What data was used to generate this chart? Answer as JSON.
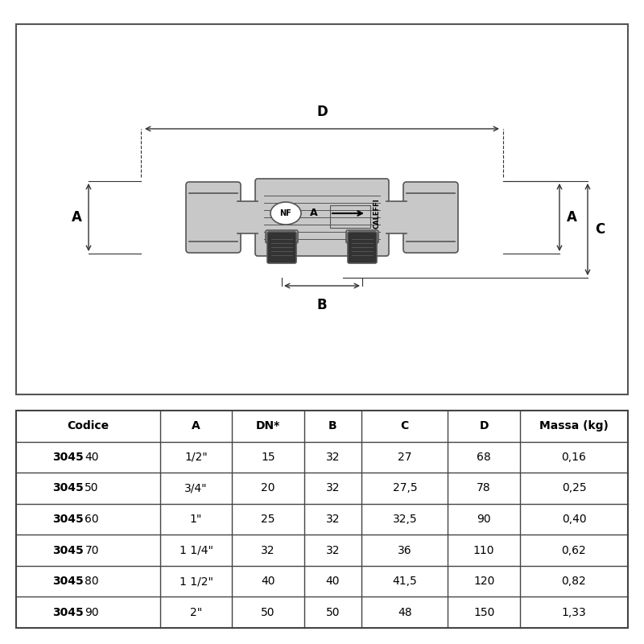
{
  "bg_color": "#ffffff",
  "border_color": "#000000",
  "valve_color": "#c8c8c8",
  "valve_dark": "#555555",
  "table_headers": [
    "Codice",
    "A",
    "DN*",
    "B",
    "C",
    "D",
    "Massa (kg)"
  ],
  "table_bold_prefix": [
    "3045",
    "3045",
    "3045",
    "3045",
    "3045",
    "3045"
  ],
  "table_suffix": [
    "40",
    "50",
    "60",
    "70",
    "80",
    "90"
  ],
  "col_A": [
    "1/2\"",
    "3/4\"",
    "1\"",
    "1 1/4\"",
    "1 1/2\"",
    "2\""
  ],
  "col_DN": [
    "15",
    "20",
    "25",
    "32",
    "40",
    "50"
  ],
  "col_B": [
    "32",
    "32",
    "32",
    "32",
    "40",
    "50"
  ],
  "col_C": [
    "27",
    "27,5",
    "32,5",
    "36",
    "41,5",
    "48"
  ],
  "col_D": [
    "68",
    "78",
    "90",
    "110",
    "120",
    "150"
  ],
  "col_Massa": [
    "0,16",
    "0,25",
    "0,40",
    "0,62",
    "0,82",
    "1,33"
  ],
  "dim_label_D": "D",
  "dim_label_A": "A",
  "dim_label_B": "B",
  "dim_label_C": "C"
}
